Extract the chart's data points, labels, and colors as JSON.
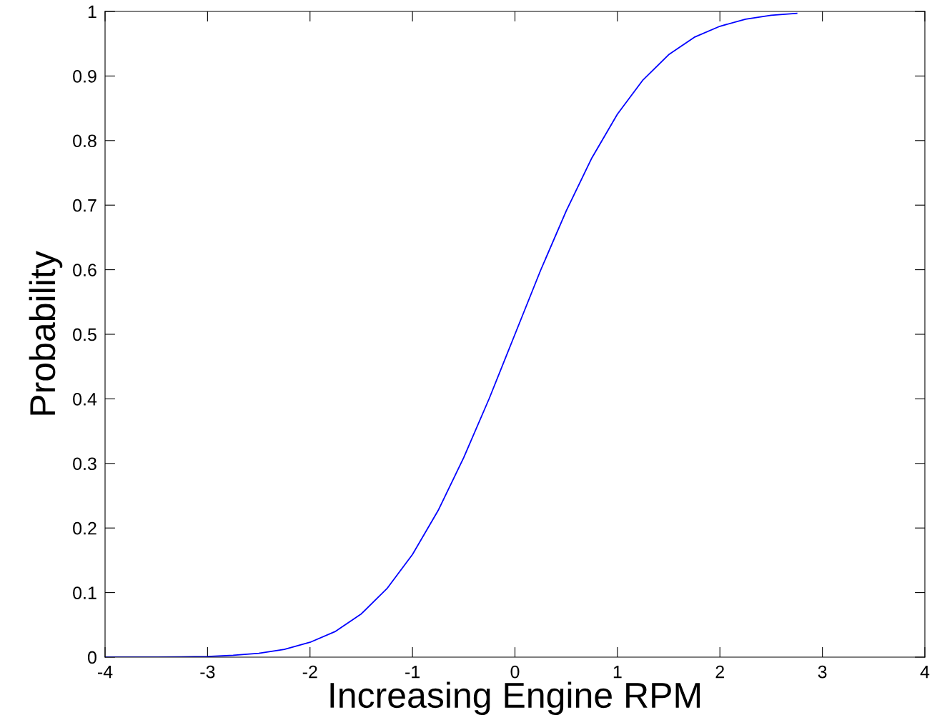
{
  "chart_data": {
    "type": "line",
    "xlabel": "Increasing Engine RPM",
    "ylabel": "Probability",
    "x": [
      -4,
      -3.5,
      -3,
      -2.75,
      -2.5,
      -2.25,
      -2,
      -1.75,
      -1.5,
      -1.25,
      -1,
      -0.75,
      -0.5,
      -0.25,
      0,
      0.25,
      0.5,
      0.75,
      1,
      1.25,
      1.5,
      1.75,
      2,
      2.25,
      2.5,
      2.75
    ],
    "series": [
      {
        "color": "#0000ff",
        "values": [
          0,
          0,
          0.001,
          0.003,
          0.006,
          0.012,
          0.023,
          0.04,
          0.067,
          0.106,
          0.159,
          0.227,
          0.309,
          0.401,
          0.5,
          0.599,
          0.691,
          0.773,
          0.841,
          0.894,
          0.933,
          0.96,
          0.977,
          0.988,
          0.994,
          0.997
        ]
      }
    ],
    "xlim": [
      -4,
      4
    ],
    "xticks": [
      -4,
      -3,
      -2,
      -1,
      0,
      1,
      2,
      3,
      4
    ],
    "ylim": [
      0,
      1
    ],
    "yticks": [
      0,
      0.1,
      0.2,
      0.3,
      0.4,
      0.5,
      0.6,
      0.7,
      0.8,
      0.9,
      1
    ],
    "grid": false,
    "legend": false,
    "marker": "none",
    "line_style": "solid"
  }
}
